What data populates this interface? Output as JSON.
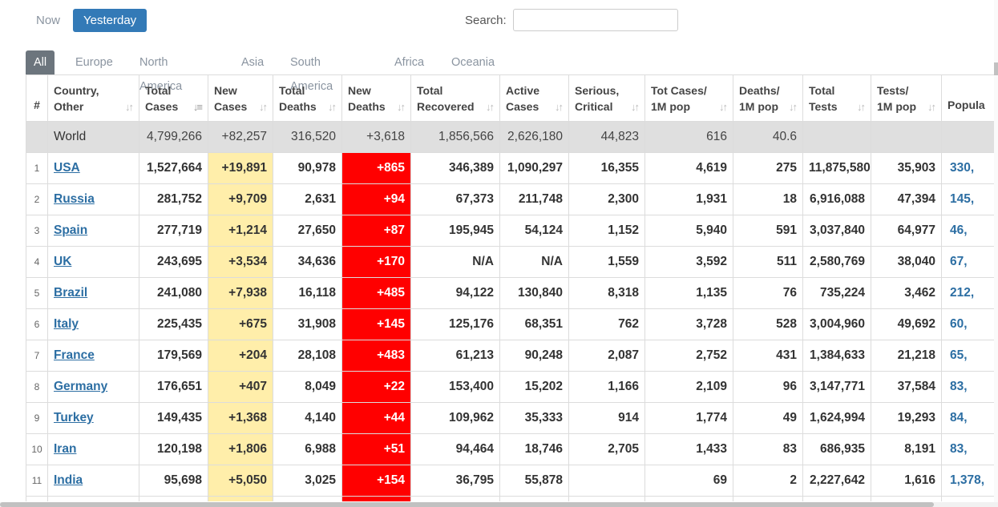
{
  "controls": {
    "now_label": "Now",
    "yesterday_label": "Yesterday",
    "search_label": "Search:",
    "search_value": ""
  },
  "tabs": [
    "All",
    "Europe",
    "North America",
    "Asia",
    "South America",
    "Africa",
    "Oceania"
  ],
  "headers": {
    "rank": "#",
    "country": [
      "Country,",
      "Other"
    ],
    "total_cases": [
      "Total",
      "Cases"
    ],
    "new_cases": [
      "New",
      "Cases"
    ],
    "total_deaths": [
      "Total",
      "Deaths"
    ],
    "new_deaths": [
      "New",
      "Deaths"
    ],
    "total_recovered": [
      "Total",
      "Recovered"
    ],
    "active_cases": [
      "Active",
      "Cases"
    ],
    "serious": [
      "Serious,",
      "Critical"
    ],
    "cases_per_m": [
      "Tot Cases/",
      "1M pop"
    ],
    "deaths_per_m": [
      "Deaths/",
      "1M pop"
    ],
    "total_tests": [
      "Total",
      "Tests"
    ],
    "tests_per_m": [
      "Tests/",
      "1M pop"
    ],
    "population": [
      "Popula"
    ]
  },
  "world": {
    "country": "World",
    "total_cases": "4,799,266",
    "new_cases": "+82,257",
    "total_deaths": "316,520",
    "new_deaths": "+3,618",
    "total_recovered": "1,856,566",
    "active_cases": "2,626,180",
    "serious": "44,823",
    "cases_per_m": "616",
    "deaths_per_m": "40.6",
    "total_tests": "",
    "tests_per_m": "",
    "population": ""
  },
  "rows": [
    {
      "rank": "1",
      "country": "USA",
      "total_cases": "1,527,664",
      "new_cases": "+19,891",
      "total_deaths": "90,978",
      "new_deaths": "+865",
      "total_recovered": "346,389",
      "active_cases": "1,090,297",
      "serious": "16,355",
      "cases_per_m": "4,619",
      "deaths_per_m": "275",
      "total_tests": "11,875,580",
      "tests_per_m": "35,903",
      "population": "330,"
    },
    {
      "rank": "2",
      "country": "Russia",
      "total_cases": "281,752",
      "new_cases": "+9,709",
      "total_deaths": "2,631",
      "new_deaths": "+94",
      "total_recovered": "67,373",
      "active_cases": "211,748",
      "serious": "2,300",
      "cases_per_m": "1,931",
      "deaths_per_m": "18",
      "total_tests": "6,916,088",
      "tests_per_m": "47,394",
      "population": "145,"
    },
    {
      "rank": "3",
      "country": "Spain",
      "total_cases": "277,719",
      "new_cases": "+1,214",
      "total_deaths": "27,650",
      "new_deaths": "+87",
      "total_recovered": "195,945",
      "active_cases": "54,124",
      "serious": "1,152",
      "cases_per_m": "5,940",
      "deaths_per_m": "591",
      "total_tests": "3,037,840",
      "tests_per_m": "64,977",
      "population": "46,"
    },
    {
      "rank": "4",
      "country": "UK",
      "total_cases": "243,695",
      "new_cases": "+3,534",
      "total_deaths": "34,636",
      "new_deaths": "+170",
      "total_recovered": "N/A",
      "active_cases": "N/A",
      "serious": "1,559",
      "cases_per_m": "3,592",
      "deaths_per_m": "511",
      "total_tests": "2,580,769",
      "tests_per_m": "38,040",
      "population": "67,"
    },
    {
      "rank": "5",
      "country": "Brazil",
      "total_cases": "241,080",
      "new_cases": "+7,938",
      "total_deaths": "16,118",
      "new_deaths": "+485",
      "total_recovered": "94,122",
      "active_cases": "130,840",
      "serious": "8,318",
      "cases_per_m": "1,135",
      "deaths_per_m": "76",
      "total_tests": "735,224",
      "tests_per_m": "3,462",
      "population": "212,"
    },
    {
      "rank": "6",
      "country": "Italy",
      "total_cases": "225,435",
      "new_cases": "+675",
      "total_deaths": "31,908",
      "new_deaths": "+145",
      "total_recovered": "125,176",
      "active_cases": "68,351",
      "serious": "762",
      "cases_per_m": "3,728",
      "deaths_per_m": "528",
      "total_tests": "3,004,960",
      "tests_per_m": "49,692",
      "population": "60,"
    },
    {
      "rank": "7",
      "country": "France",
      "total_cases": "179,569",
      "new_cases": "+204",
      "total_deaths": "28,108",
      "new_deaths": "+483",
      "total_recovered": "61,213",
      "active_cases": "90,248",
      "serious": "2,087",
      "cases_per_m": "2,752",
      "deaths_per_m": "431",
      "total_tests": "1,384,633",
      "tests_per_m": "21,218",
      "population": "65,"
    },
    {
      "rank": "8",
      "country": "Germany",
      "total_cases": "176,651",
      "new_cases": "+407",
      "total_deaths": "8,049",
      "new_deaths": "+22",
      "total_recovered": "153,400",
      "active_cases": "15,202",
      "serious": "1,166",
      "cases_per_m": "2,109",
      "deaths_per_m": "96",
      "total_tests": "3,147,771",
      "tests_per_m": "37,584",
      "population": "83,"
    },
    {
      "rank": "9",
      "country": "Turkey",
      "total_cases": "149,435",
      "new_cases": "+1,368",
      "total_deaths": "4,140",
      "new_deaths": "+44",
      "total_recovered": "109,962",
      "active_cases": "35,333",
      "serious": "914",
      "cases_per_m": "1,774",
      "deaths_per_m": "49",
      "total_tests": "1,624,994",
      "tests_per_m": "19,293",
      "population": "84,"
    },
    {
      "rank": "10",
      "country": "Iran",
      "total_cases": "120,198",
      "new_cases": "+1,806",
      "total_deaths": "6,988",
      "new_deaths": "+51",
      "total_recovered": "94,464",
      "active_cases": "18,746",
      "serious": "2,705",
      "cases_per_m": "1,433",
      "deaths_per_m": "83",
      "total_tests": "686,935",
      "tests_per_m": "8,191",
      "population": "83,"
    },
    {
      "rank": "11",
      "country": "India",
      "total_cases": "95,698",
      "new_cases": "+5,050",
      "total_deaths": "3,025",
      "new_deaths": "+154",
      "total_recovered": "36,795",
      "active_cases": "55,878",
      "serious": "",
      "cases_per_m": "69",
      "deaths_per_m": "2",
      "total_tests": "2,227,642",
      "tests_per_m": "1,616",
      "population": "1,378,"
    },
    {
      "rank": "",
      "country": "",
      "total_cases": "",
      "new_cases": "",
      "total_deaths": "",
      "new_deaths": "",
      "total_recovered": "",
      "active_cases": "",
      "serious": "",
      "cases_per_m": "",
      "deaths_per_m": "",
      "total_tests": "",
      "tests_per_m": "",
      "population": ""
    }
  ],
  "colors": {
    "accent": "#337ab7",
    "new_cases_bg": "#ffeeaa",
    "new_deaths_bg": "#ff0000",
    "world_bg": "#dfdfdf",
    "link": "#2c6ea3"
  }
}
